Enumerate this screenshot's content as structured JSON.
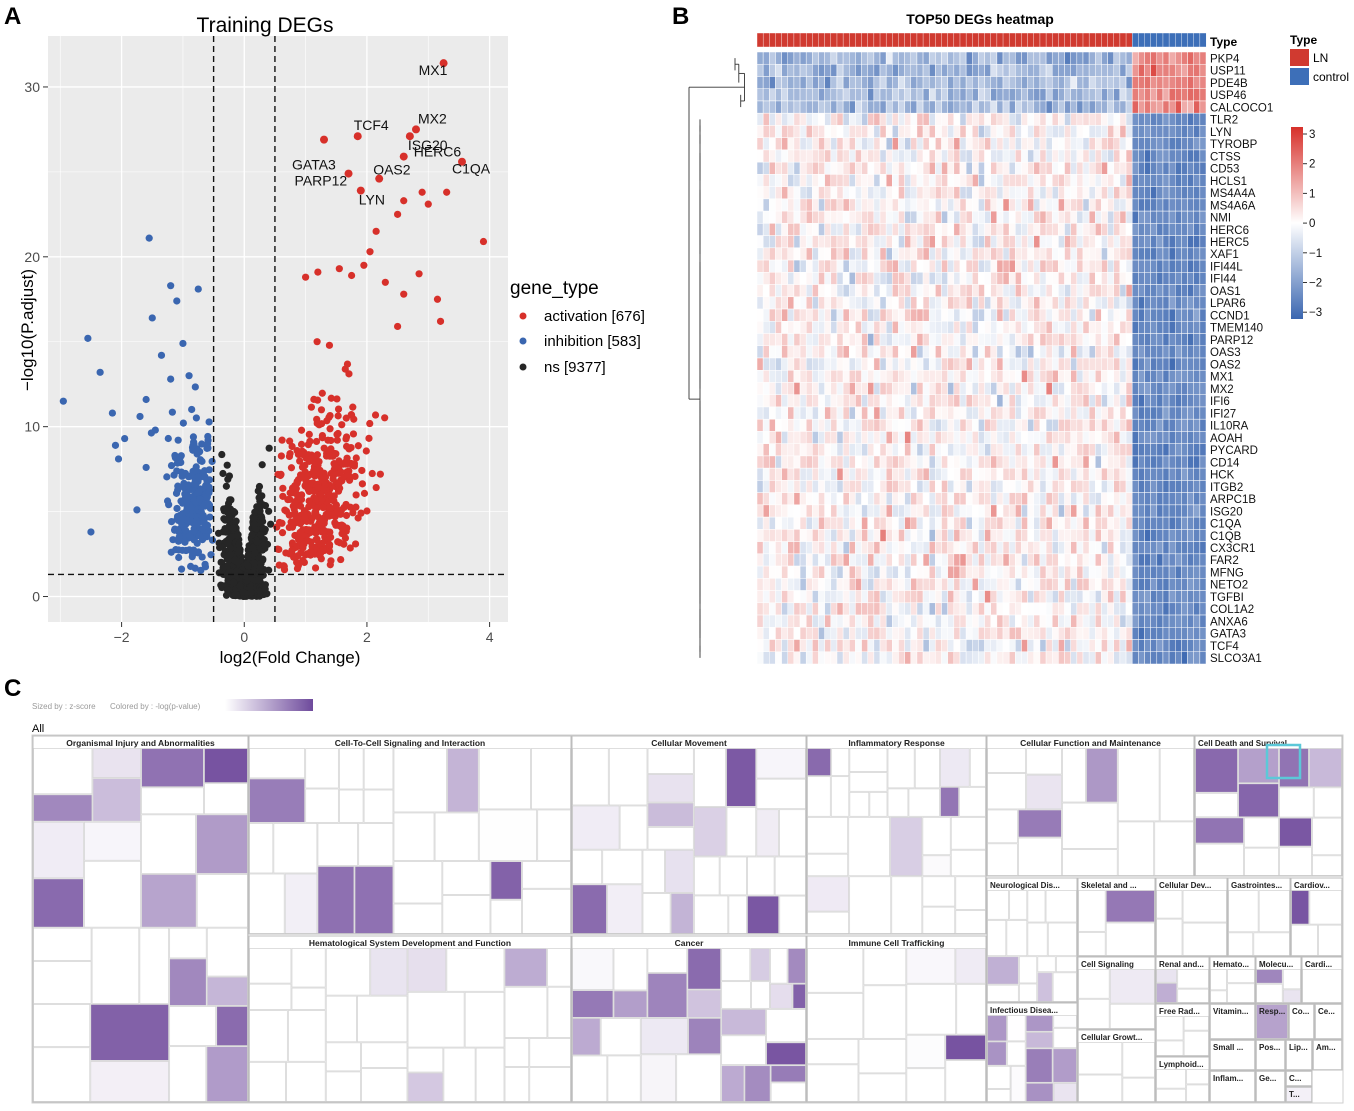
{
  "panels": {
    "a": "A",
    "b": "B",
    "c": "C"
  },
  "colors": {
    "activation": "#d7302a",
    "inhibition": "#3a66b0",
    "ns": "#262626",
    "panel_bg": "#ebebeb",
    "heat_high": "#d7302a",
    "heat_low": "#3a66b0",
    "ln": "#d03a30",
    "control": "#3d6fb8",
    "tree_dark": "#7e59a6"
  },
  "chart_data": [
    {
      "type": "scatter",
      "title": "Training DEGs",
      "xlabel": "log2(Fold Change)",
      "ylabel": "−log10(P.adjust)",
      "xlim": [
        -3.2,
        4.3
      ],
      "ylim": [
        -1.5,
        33
      ],
      "xticks": [
        -2,
        0,
        2,
        4
      ],
      "xtick_labels": [
        "−2",
        "0",
        "2",
        "4"
      ],
      "yticks": [
        0,
        10,
        20,
        30
      ],
      "ytick_labels": [
        "0",
        "10",
        "20",
        "30"
      ],
      "thresholds": {
        "x": [
          -0.5,
          0.5
        ],
        "y": 1.3
      },
      "legend": {
        "title": "gene_type",
        "entries": [
          "activation [676]",
          "inhibition [583]",
          "ns [9377]"
        ]
      },
      "series": [
        {
          "name": "activation",
          "count": 676,
          "labeled_points": [
            {
              "label": "MX1",
              "x": 3.25,
              "y": 31.4
            },
            {
              "label": "MX2",
              "x": 2.8,
              "y": 27.5
            },
            {
              "label": "TCF4",
              "x": 1.85,
              "y": 27.1
            },
            {
              "label": "GATA3",
              "x": 1.3,
              "y": 26.9
            },
            {
              "label": "ISG20",
              "x": 2.7,
              "y": 27.1
            },
            {
              "label": "HERC6",
              "x": 2.6,
              "y": 25.9
            },
            {
              "label": "C1QA",
              "x": 3.55,
              "y": 25.6
            },
            {
              "label": "OAS2",
              "x": 2.2,
              "y": 24.6
            },
            {
              "label": "PARP12",
              "x": 1.7,
              "y": 24.9
            },
            {
              "label": "LYN",
              "x": 1.9,
              "y": 23.9
            }
          ]
        },
        {
          "name": "inhibition",
          "count": 583
        },
        {
          "name": "ns",
          "count": 9377
        }
      ]
    },
    {
      "type": "heatmap",
      "title": "TOP50 DEGs heatmap",
      "annotation_label": "Type",
      "legend_title": "Type",
      "groups": [
        {
          "name": "LN",
          "n": 61
        },
        {
          "name": "control",
          "n": 12
        }
      ],
      "color_scale": {
        "min": -3,
        "max": 3,
        "ticks": [
          "3",
          "2",
          "1",
          "0",
          "−1",
          "−2",
          "−3"
        ]
      },
      "genes": [
        "PKP4",
        "USP11",
        "PDE4B",
        "USP46",
        "CALCOCO1",
        "TLR2",
        "LYN",
        "TYROBP",
        "CTSS",
        "CD53",
        "HCLS1",
        "MS4A4A",
        "MS4A6A",
        "NMI",
        "HERC6",
        "HERC5",
        "XAF1",
        "IFI44L",
        "IFI44",
        "OAS1",
        "LPAR6",
        "CCND1",
        "TMEM140",
        "PARP12",
        "OAS3",
        "OAS2",
        "MX1",
        "MX2",
        "IFI6",
        "IFI27",
        "IL10RA",
        "AOAH",
        "PYCARD",
        "CD14",
        "HCK",
        "ITGB2",
        "ARPC1B",
        "ISG20",
        "C1QA",
        "C1QB",
        "CX3CR1",
        "FAR2",
        "MFNG",
        "NETO2",
        "TGFBI",
        "COL1A2",
        "ANXA6",
        "GATA3",
        "TCF4",
        "SLCO3A1"
      ]
    },
    {
      "type": "treemap",
      "all_label": "All",
      "sized_by": "Sized by : z-score",
      "colored_by": "Colored by : -log(p-value)",
      "categories": [
        "Organismal Injury and Abnormalities",
        "Cell-To-Cell Signaling and Interaction",
        "Cellular Movement",
        "Inflammatory Response",
        "Cellular Function and Maintenance",
        "Cell Death and Survival",
        "Hematological System Development and Function",
        "Cancer",
        "Immune Cell Trafficking",
        "Neurological Dis...",
        "Skeletal and ...",
        "Cellular Dev...",
        "Gastrointes...",
        "Cardiov...",
        "Cell Signaling",
        "Renal and...",
        "Hemato...",
        "Molecu...",
        "Cardi...",
        "Free Rad...",
        "Vitamin...",
        "Resp...",
        "Co...",
        "Ce...",
        "Small ...",
        "Pos...",
        "Lip...",
        "Am...",
        "Infectious Disea...",
        "Cellular Growt...",
        "Lymphoid...",
        "Inflam...",
        "Ge...",
        "C...",
        "T..."
      ]
    }
  ]
}
